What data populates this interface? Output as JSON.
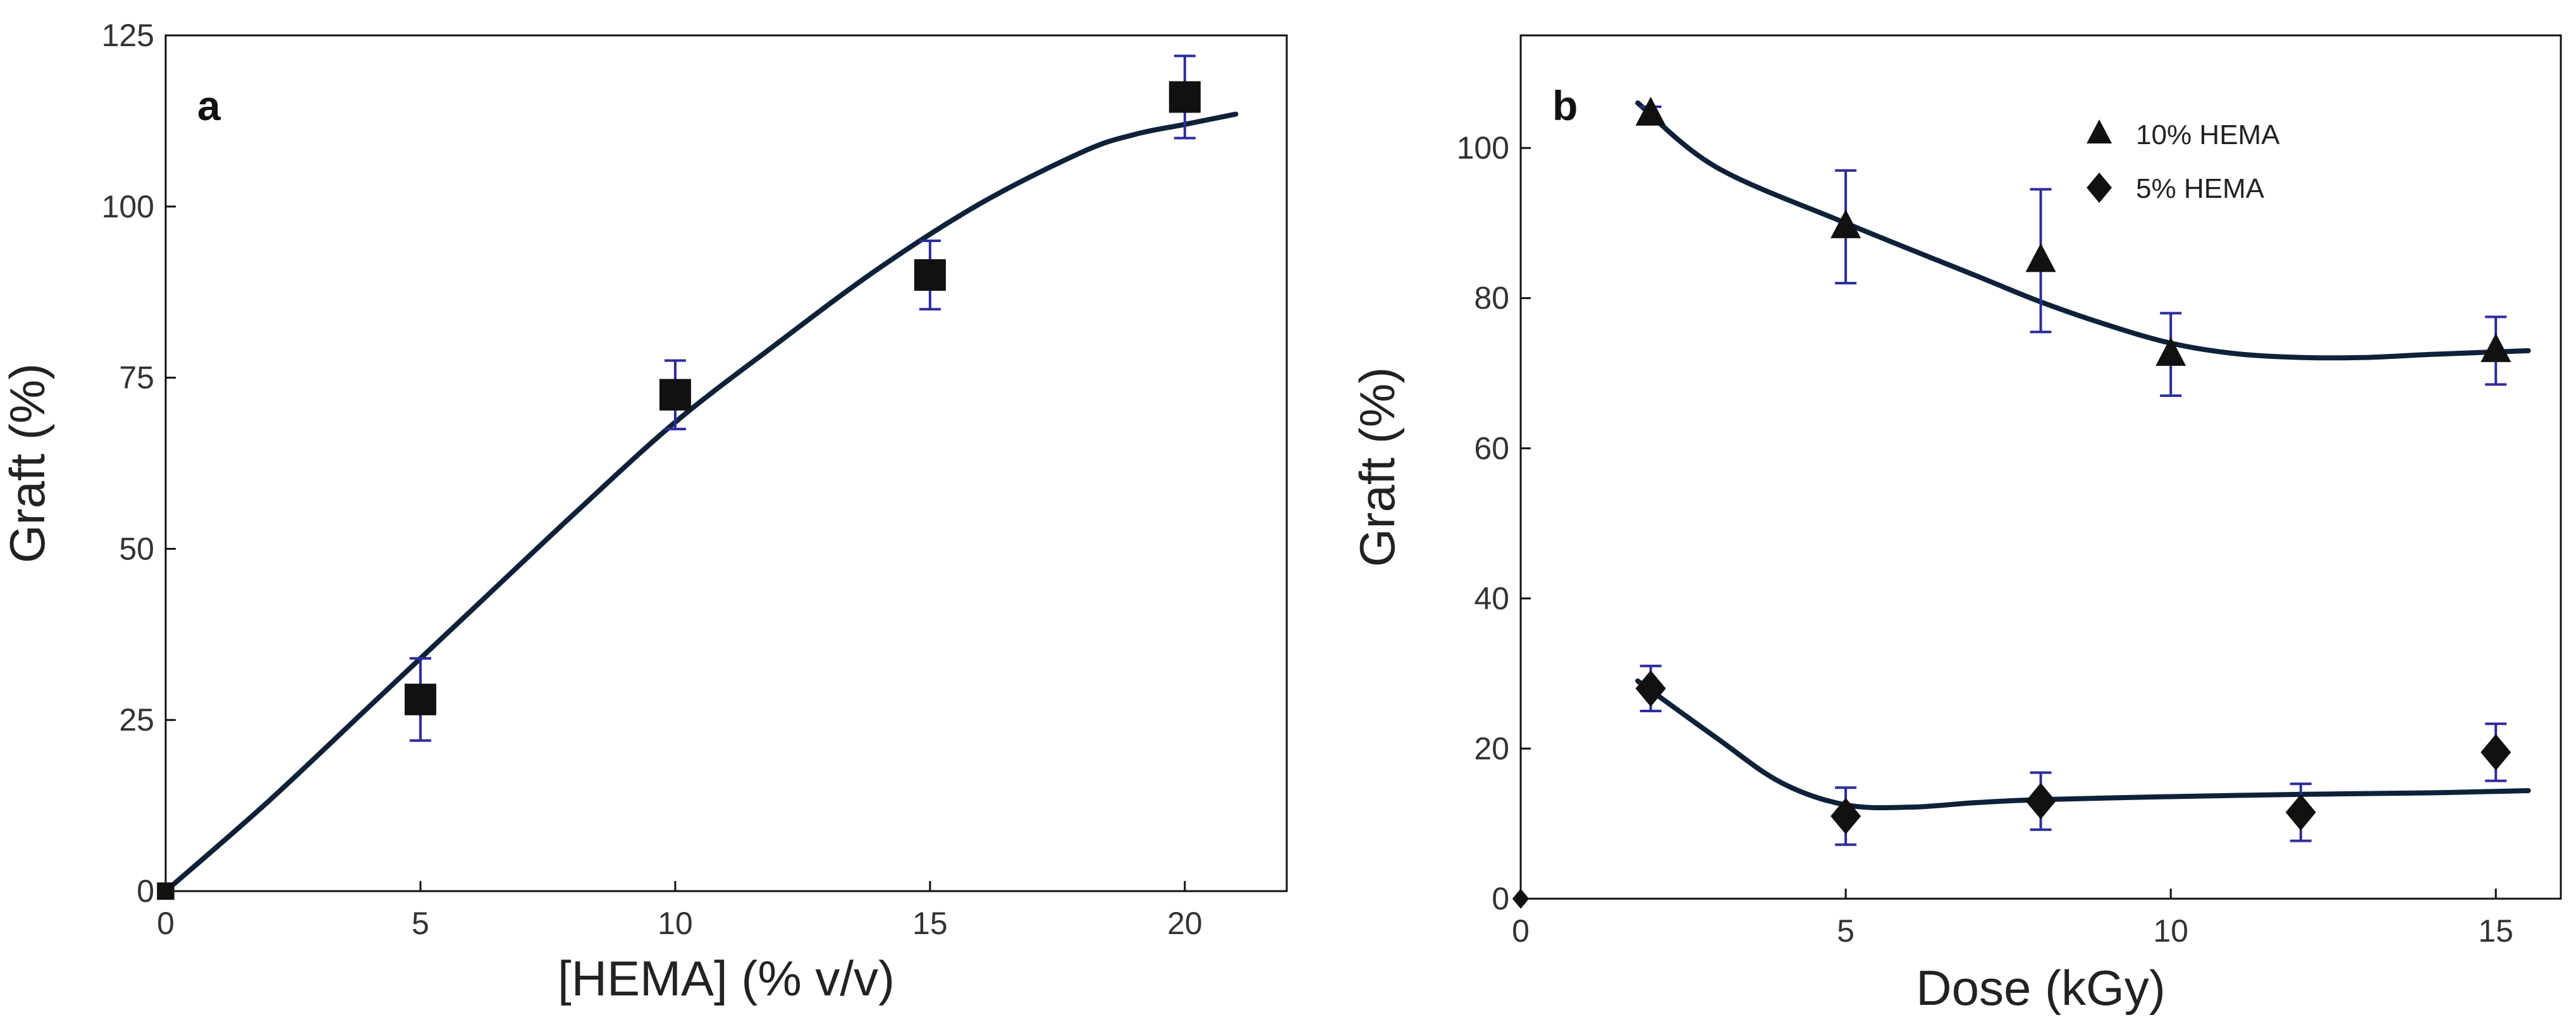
{
  "chart_data": [
    {
      "panel": "a",
      "type": "scatter",
      "xlabel": "[HEMA] (% v/v)",
      "ylabel": "Graft (%)",
      "xlim": [
        0,
        22
      ],
      "ylim": [
        0,
        125
      ],
      "xticks": [
        0,
        5,
        10,
        15,
        20
      ],
      "yticks": [
        0,
        25,
        50,
        75,
        100,
        125
      ],
      "series": [
        {
          "name": "Graft",
          "marker": "square",
          "points": [
            {
              "x": 0,
              "y": 0,
              "err": null
            },
            {
              "x": 5,
              "y": 28,
              "err": 6
            },
            {
              "x": 10,
              "y": 72.5,
              "err": 5
            },
            {
              "x": 15,
              "y": 90,
              "err": 5
            },
            {
              "x": 20,
              "y": 116,
              "err": 6
            }
          ],
          "fit": [
            [
              0,
              0
            ],
            [
              2,
              13
            ],
            [
              4,
              27
            ],
            [
              6,
              41
            ],
            [
              8,
              55
            ],
            [
              10,
              68.5
            ],
            [
              12,
              80
            ],
            [
              14,
              91
            ],
            [
              16,
              100.5
            ],
            [
              18,
              108
            ],
            [
              19,
              110.5
            ],
            [
              20,
              112
            ],
            [
              21,
              113.5
            ]
          ]
        }
      ],
      "colors": {
        "line": "#0d2238",
        "marker": "#111111",
        "error": "#2c2c9c"
      }
    },
    {
      "panel": "b",
      "type": "scatter",
      "xlabel": "Dose (kGy)",
      "ylabel": "Graft (%)",
      "xlim": [
        0,
        16
      ],
      "ylim": [
        0,
        115
      ],
      "xticks": [
        0,
        5,
        10,
        15
      ],
      "yticks": [
        0,
        20,
        40,
        60,
        80,
        100
      ],
      "legend_position": "top-right",
      "series": [
        {
          "name": "10% HEMA",
          "marker": "triangle",
          "points": [
            {
              "x": 2,
              "y": 104.5,
              "err": 1
            },
            {
              "x": 5,
              "y": 89.5,
              "err": 7.5
            },
            {
              "x": 8,
              "y": 85,
              "err": 9.5
            },
            {
              "x": 10,
              "y": 72.5,
              "err": 5.5
            },
            {
              "x": 15,
              "y": 73,
              "err": 4.5
            }
          ],
          "fit": [
            [
              1.8,
              106
            ],
            [
              3,
              97.5
            ],
            [
              5,
              90
            ],
            [
              7,
              83
            ],
            [
              8,
              79.5
            ],
            [
              9,
              76.5
            ],
            [
              10,
              74
            ],
            [
              11,
              72.6
            ],
            [
              12,
              72.1
            ],
            [
              13,
              72.1
            ],
            [
              14,
              72.5
            ],
            [
              15.5,
              73
            ]
          ]
        },
        {
          "name": "5% HEMA",
          "marker": "diamond",
          "points": [
            {
              "x": 0,
              "y": 0,
              "err": null
            },
            {
              "x": 2,
              "y": 28,
              "err": 3
            },
            {
              "x": 5,
              "y": 11,
              "err": 3.8
            },
            {
              "x": 8,
              "y": 13,
              "err": 3.8
            },
            {
              "x": 12,
              "y": 11.5,
              "err": 3.8
            },
            {
              "x": 15,
              "y": 19.5,
              "err": 3.8
            }
          ],
          "fit": [
            [
              1.8,
              29
            ],
            [
              3,
              21.5
            ],
            [
              4,
              15.5
            ],
            [
              5,
              12.5
            ],
            [
              6,
              12.2
            ],
            [
              7,
              12.8
            ],
            [
              8,
              13.2
            ],
            [
              10,
              13.6
            ],
            [
              12,
              13.9
            ],
            [
              14,
              14.1
            ],
            [
              15.5,
              14.4
            ]
          ]
        }
      ],
      "colors": {
        "line": "#0d2238",
        "marker": "#111111",
        "error": "#2c2c9c"
      }
    }
  ]
}
